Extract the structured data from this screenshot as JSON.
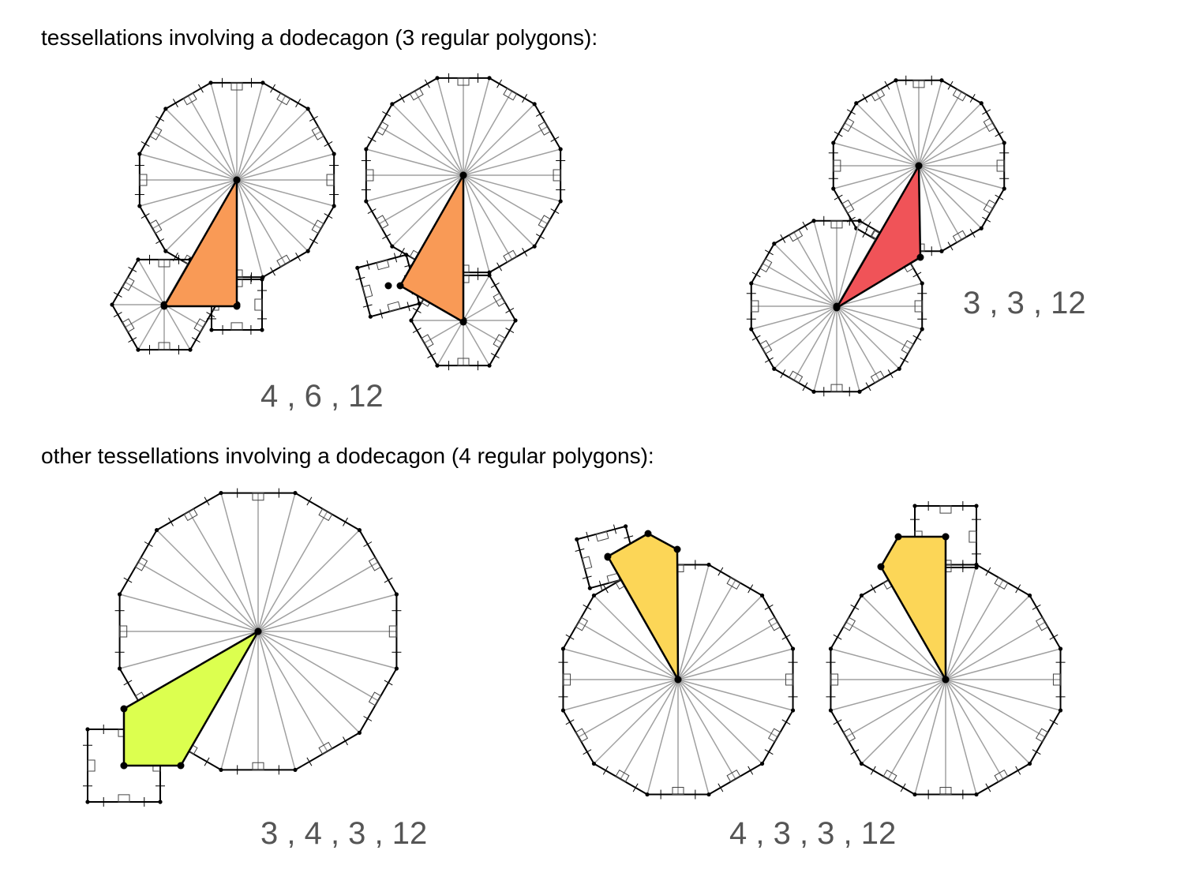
{
  "headings": {
    "top": "tessellations involving a dodecagon (3 regular polygons):",
    "bottom": "other tessellations involving a dodecagon (4 regular polygons):"
  },
  "labels": {
    "t4612": "4 , 6 , 12",
    "t3312": "3 , 3 , 12",
    "t34312": "3 , 4 , 3 , 12",
    "t43312": "4 , 3 , 3 , 12"
  },
  "colors": {
    "orange": "#f99a56",
    "red": "#f05358",
    "lime": "#dcff4f",
    "yellow": "#fcd657",
    "spoke": "#a0a0a0",
    "edge": "#000000"
  }
}
